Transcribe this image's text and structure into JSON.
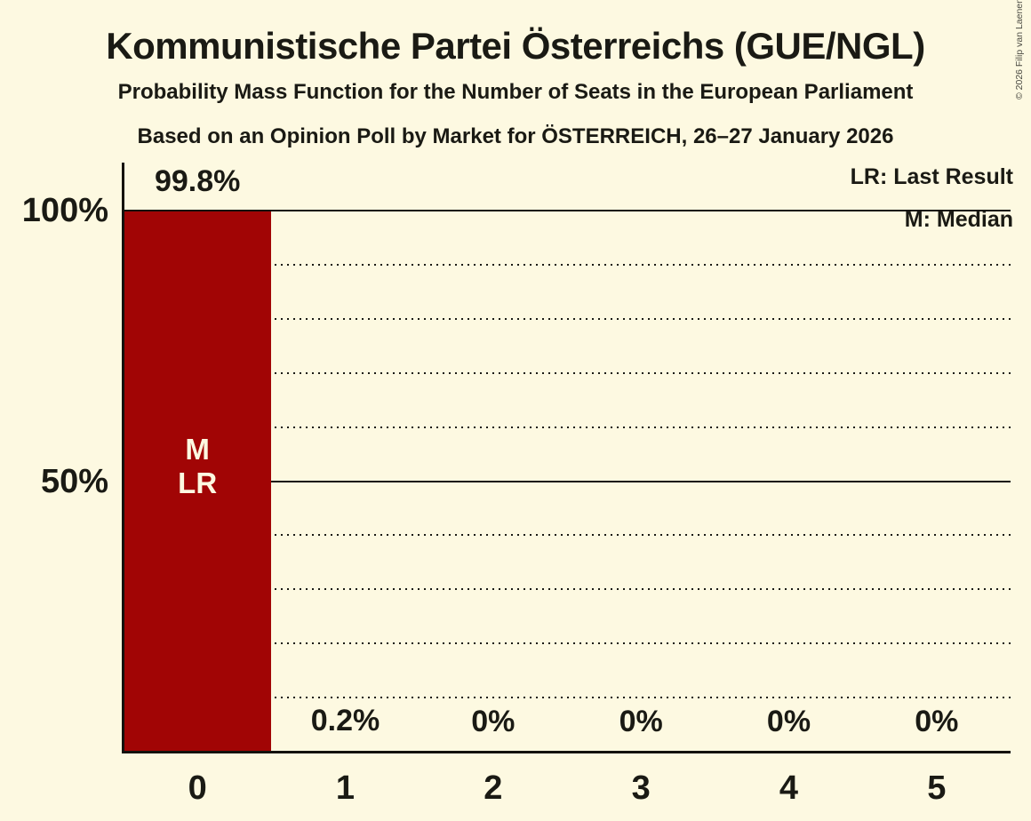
{
  "page": {
    "background_color": "#FDF9E1",
    "text_color": "#1A1A14",
    "copyright": "© 2026 Filip van Laenen"
  },
  "header": {
    "title": "Kommunistische Partei Österreichs (GUE/NGL)",
    "subtitle": "Probability Mass Function for the Number of Seats in the European Parliament",
    "poll_line": "Based on an Opinion Poll by Market for ÖSTERREICH, 26–27 January 2026"
  },
  "legend": {
    "lines": [
      "LR: Last Result",
      "M: Median"
    ]
  },
  "chart_data": {
    "type": "bar",
    "title": "Kommunistische Partei Österreichs (GUE/NGL)",
    "xlabel": "",
    "ylabel": "",
    "categories": [
      "0",
      "1",
      "2",
      "3",
      "4",
      "5"
    ],
    "values": [
      99.8,
      0.2,
      0,
      0,
      0,
      0
    ],
    "value_labels": [
      "99.8%",
      "0.2%",
      "0%",
      "0%",
      "0%",
      "0%"
    ],
    "ylim": [
      0,
      100
    ],
    "y_axis": {
      "ticks": [
        {
          "value": 100,
          "label": "100%"
        },
        {
          "value": 50,
          "label": "50%"
        }
      ],
      "solid_lines": [
        100,
        50
      ],
      "dotted_lines": [
        90,
        80,
        70,
        60,
        40,
        30,
        20,
        10
      ]
    },
    "bar_annotations": [
      {
        "category_index": 0,
        "lines": [
          "M",
          "LR"
        ]
      }
    ],
    "bar_color": "#A10505",
    "grid": "dotted horizontal every 10%, solid at 50% and 100%",
    "legend_position": "top-right"
  }
}
